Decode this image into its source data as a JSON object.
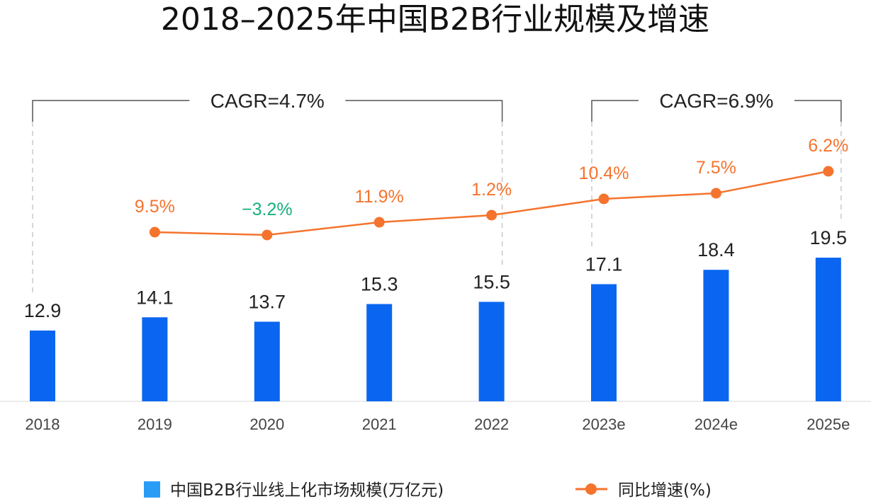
{
  "colors": {
    "bar": "#0a66f0",
    "line": "#f5732d",
    "positive_label": "#f5732d",
    "negative_label": "#17b07a",
    "bracket": "#555555",
    "dashed_guide": "#c8c8c8",
    "legend_square": "#2b9cf6",
    "axis": "#e6e6e6"
  },
  "chart_data": {
    "type": "bar",
    "title": "2018–2025年中国B2B行业规模及增速",
    "categories": [
      "2018",
      "2019",
      "2020",
      "2021",
      "2022",
      "2023e",
      "2024e",
      "2025e"
    ],
    "series": [
      {
        "name": "中国B2B行业线上化市场规模(万亿元)",
        "type": "bar",
        "values": [
          12.9,
          14.1,
          13.7,
          15.3,
          15.5,
          17.1,
          18.4,
          19.5
        ],
        "labels": [
          "12.9",
          "14.1",
          "13.7",
          "15.3",
          "15.5",
          "17.1",
          "18.4",
          "19.5"
        ]
      },
      {
        "name": "同比增速(%)",
        "type": "line",
        "values": [
          null,
          9.5,
          -3.2,
          11.9,
          1.2,
          10.4,
          7.5,
          6.2
        ],
        "labels": [
          "",
          "9.5%",
          "−3.2%",
          "11.9%",
          "1.2%",
          "10.4%",
          "7.5%",
          "6.2%"
        ]
      }
    ],
    "annotations": [
      {
        "label": "CAGR=4.7%",
        "from": "2018",
        "to": "2022"
      },
      {
        "label": "CAGR=6.9%",
        "from": "2023e",
        "to": "2025e"
      }
    ],
    "legend": {
      "position": "bottom"
    },
    "grid": false
  }
}
